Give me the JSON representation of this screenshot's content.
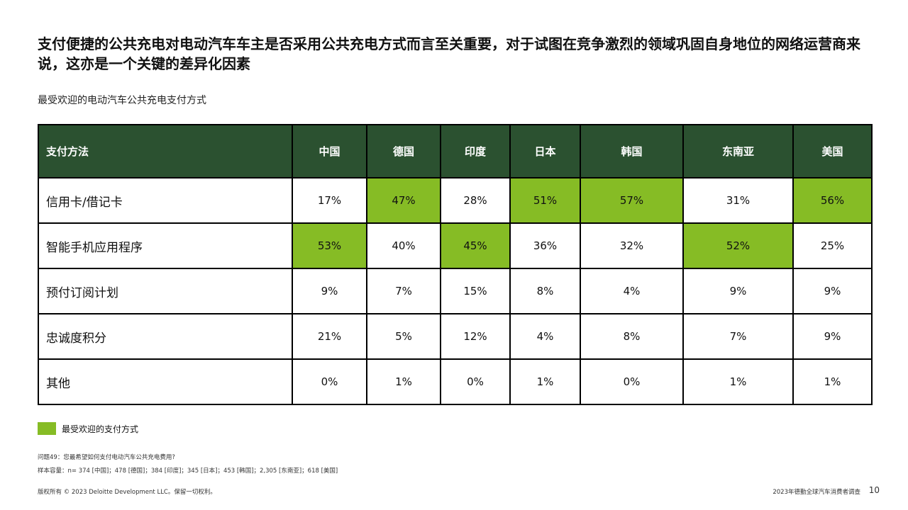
{
  "title": "支付便捷的公共充电对电动汽车车主是否采用公共充电方式而言至关重要，对于试图在竞争激烈的领域巩固自身地位的网络运营商来说，这亦是一个关键的差异化因素",
  "subtitle": "最受欢迎的电动汽车公共充电支付方式",
  "colors": {
    "header_bg": "#2b5130",
    "highlight": "#86bc25"
  },
  "table": {
    "header": [
      "支付方法",
      "中国",
      "德国",
      "印度",
      "日本",
      "韩国",
      "东南亚",
      "美国"
    ],
    "rows": [
      {
        "label": "信用卡/借记卡",
        "values": [
          "17%",
          "47%",
          "28%",
          "51%",
          "57%",
          "31%",
          "56%"
        ],
        "highlight": [
          false,
          true,
          false,
          true,
          true,
          false,
          true
        ]
      },
      {
        "label": "智能手机应用程序",
        "values": [
          "53%",
          "40%",
          "45%",
          "36%",
          "32%",
          "52%",
          "25%"
        ],
        "highlight": [
          true,
          false,
          true,
          false,
          false,
          true,
          false
        ]
      },
      {
        "label": "预付订阅计划",
        "values": [
          "9%",
          "7%",
          "15%",
          "8%",
          "4%",
          "9%",
          "9%"
        ],
        "highlight": [
          false,
          false,
          false,
          false,
          false,
          false,
          false
        ]
      },
      {
        "label": "忠诚度积分",
        "values": [
          "21%",
          "5%",
          "12%",
          "4%",
          "8%",
          "7%",
          "9%"
        ],
        "highlight": [
          false,
          false,
          false,
          false,
          false,
          false,
          false
        ]
      },
      {
        "label": "其他",
        "values": [
          "0%",
          "1%",
          "0%",
          "1%",
          "0%",
          "1%",
          "1%"
        ],
        "highlight": [
          false,
          false,
          false,
          false,
          false,
          false,
          false
        ]
      }
    ]
  },
  "legend": {
    "label": "最受欢迎的支付方式"
  },
  "notes": {
    "question": "问题49：您最希望如何支付电动汽车公共充电费用?",
    "sample": "样本容量：n= 374 [中国]；478 [德国]；384 [印度]；345 [日本]；453 [韩国]；2,305 [东南亚]；618 [美国]"
  },
  "footer": {
    "copyright": "版权所有 © 2023 Deloitte Development LLC。保留一切权利。",
    "report": "2023年德勤全球汽车消费者调查",
    "page": "10"
  }
}
